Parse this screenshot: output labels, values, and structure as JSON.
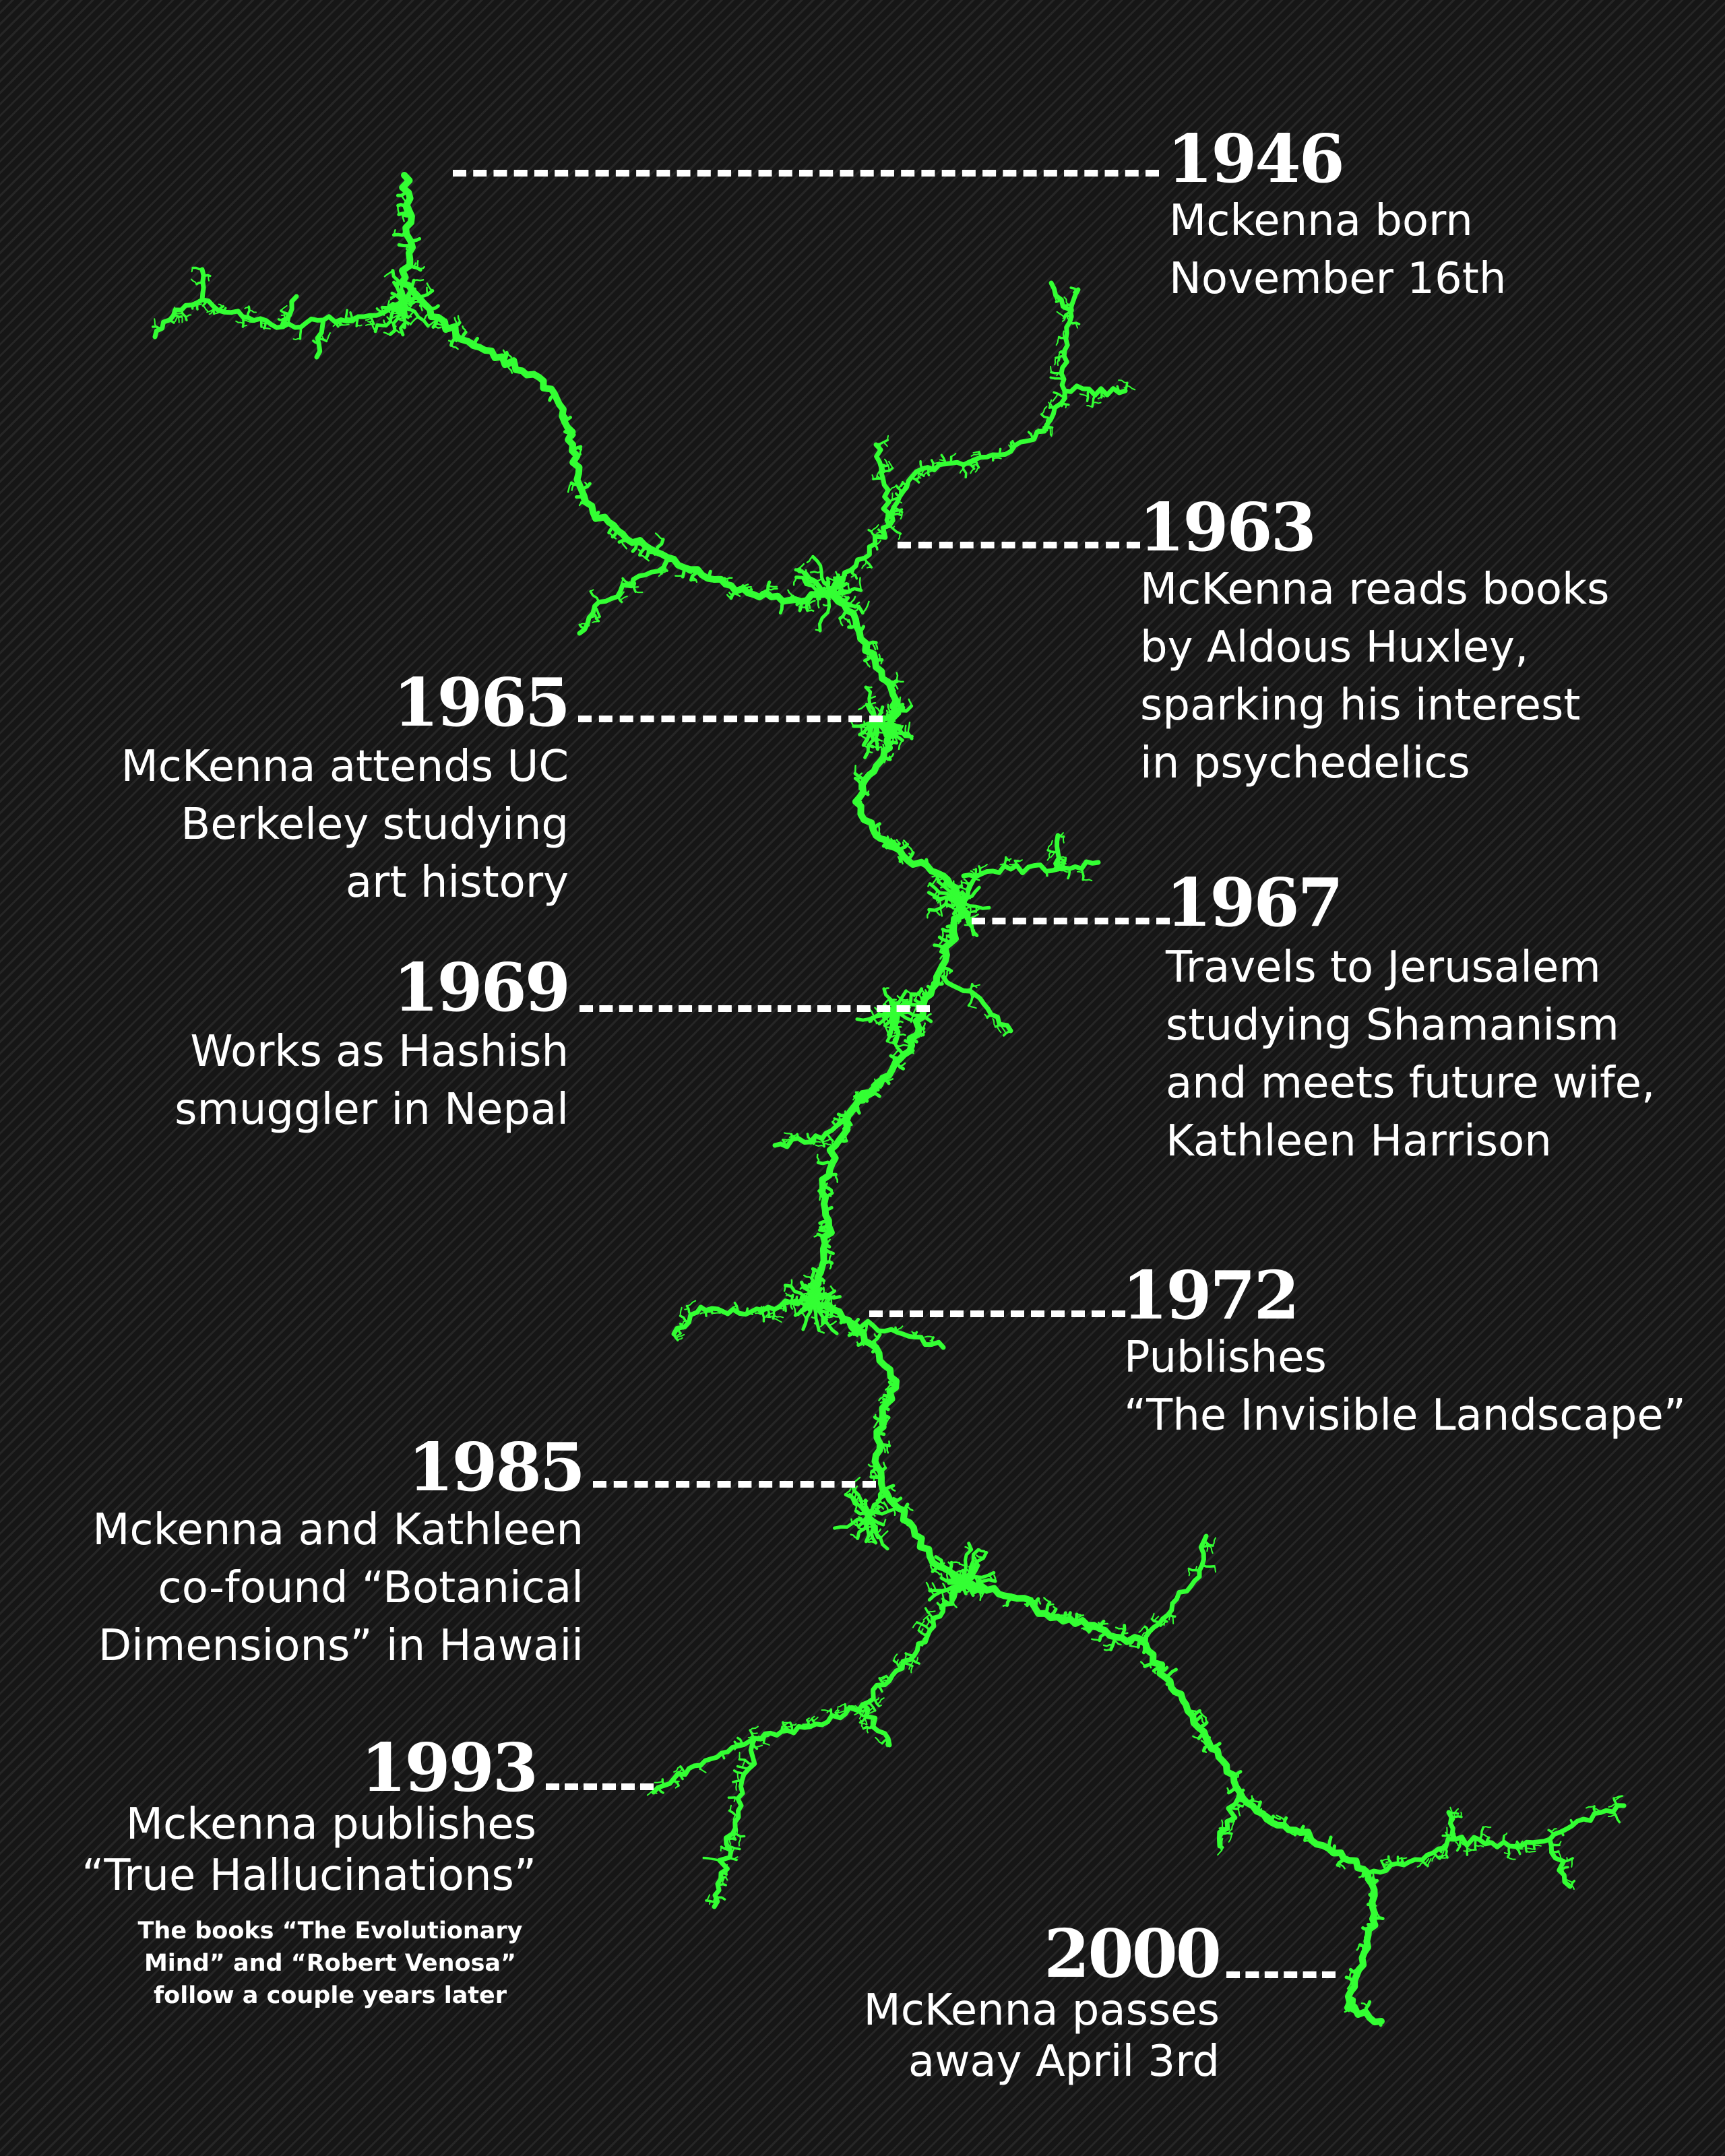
{
  "colors": {
    "background": "#1b1b1b",
    "branch": "#33ff33",
    "text": "#ffffff"
  },
  "events": [
    {
      "year": "1946",
      "lines": [
        "Mckenna born",
        "November 16th"
      ]
    },
    {
      "year": "1963",
      "lines": [
        "McKenna reads books",
        "by Aldous Huxley,",
        "sparking his interest",
        "in psychedelics"
      ]
    },
    {
      "year": "1965",
      "lines": [
        "McKenna attends UC",
        "Berkeley studying",
        "art history"
      ]
    },
    {
      "year": "1967",
      "lines": [
        "Travels to Jerusalem",
        "studying Shamanism",
        "and meets future wife,",
        "Kathleen Harrison"
      ]
    },
    {
      "year": "1969",
      "lines": [
        "Works as Hashish",
        "smuggler in Nepal"
      ]
    },
    {
      "year": "1972",
      "lines": [
        "Publishes",
        "“The Invisible Landscape”"
      ]
    },
    {
      "year": "1985",
      "lines": [
        "Mckenna and Kathleen",
        "co-found “Botanical",
        "Dimensions” in Hawaii"
      ]
    },
    {
      "year": "1993",
      "lines": [
        "Mckenna publishes",
        "“True Hallucinations”"
      ],
      "note": [
        "The books “The Evolutionary",
        "Mind” and “Robert Venosa”",
        "follow a couple years later"
      ]
    },
    {
      "year": "2000",
      "lines": [
        "McKenna passes",
        "away April 3rd"
      ]
    }
  ]
}
